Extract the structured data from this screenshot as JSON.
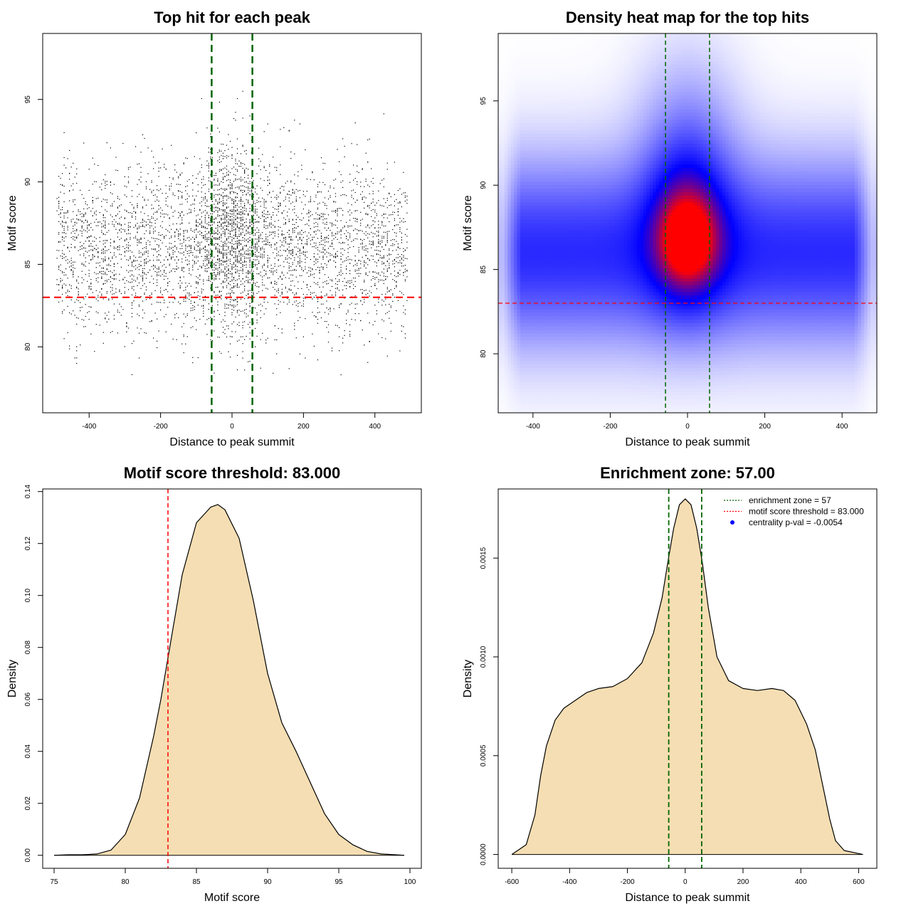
{
  "chart_data": [
    {
      "type": "scatter",
      "title": "Top hit for each peak",
      "xlabel": "Distance to peak summit",
      "ylabel": "Motif score",
      "xlim": [
        -530,
        530
      ],
      "ylim": [
        76,
        99
      ],
      "xticks": [
        -400,
        -200,
        0,
        200,
        400
      ],
      "yticks": [
        80,
        85,
        90,
        95
      ],
      "points_summary": {
        "approx_count": 5000,
        "x_range": [
          -490,
          490
        ],
        "y_range": [
          78.3,
          98.1
        ],
        "central_peak_x": 0,
        "central_peak_y_mean": 87.0,
        "flank_y_mean": 86.0
      },
      "threshold_y": 83.0,
      "enrichment_zone": [
        -57,
        57
      ],
      "threshold_color": "#ff0000",
      "zone_color": "#006400"
    },
    {
      "type": "heatmap",
      "title": "Density heat map for the top hits",
      "xlabel": "Distance to peak summit",
      "ylabel": "Motif score",
      "xlim": [
        -490,
        490
      ],
      "ylim": [
        76.5,
        99
      ],
      "xticks": [
        -400,
        -200,
        0,
        200,
        400
      ],
      "yticks": [
        80,
        85,
        90,
        95
      ],
      "color_scale": [
        "#ffffff",
        "#0000ff",
        "#ff0000"
      ],
      "hotspot": {
        "x": 0,
        "y": 86.7
      },
      "threshold_y": 83.0,
      "enrichment_zone": [
        -57,
        57
      ]
    },
    {
      "type": "area",
      "title": "Motif score threshold: 83.000",
      "xlabel": "Motif score",
      "ylabel": "Density",
      "xlim": [
        74.2,
        100.8
      ],
      "ylim": [
        -0.005,
        0.141
      ],
      "xticks": [
        75,
        80,
        85,
        90,
        95,
        100
      ],
      "yticks": [
        0.0,
        0.02,
        0.04,
        0.06,
        0.08,
        0.1,
        0.12,
        0.14
      ],
      "ytick_labels": [
        "0.00",
        "0.02",
        "0.04",
        "0.06",
        "0.08",
        "0.10",
        "0.12",
        "0.14"
      ],
      "x": [
        75,
        76,
        77,
        78,
        79,
        80,
        81,
        82,
        82.5,
        83,
        84,
        85,
        86,
        86.5,
        87,
        88,
        89,
        90,
        91,
        92,
        93,
        94,
        95,
        96,
        97,
        98,
        99.6
      ],
      "y": [
        0.0,
        0.0002,
        0.0002,
        0.0005,
        0.002,
        0.008,
        0.022,
        0.046,
        0.06,
        0.076,
        0.108,
        0.128,
        0.134,
        0.135,
        0.133,
        0.122,
        0.098,
        0.07,
        0.051,
        0.04,
        0.028,
        0.016,
        0.008,
        0.004,
        0.0015,
        0.0005,
        0.0
      ],
      "fill_color": "#f5deb3",
      "threshold_x": 83.0
    },
    {
      "type": "area",
      "title": "Enrichment zone: 57.00",
      "xlabel": "Distance to peak summit",
      "ylabel": "Density",
      "xlim": [
        -647,
        663
      ],
      "ylim": [
        -7e-05,
        0.00185
      ],
      "xticks": [
        -600,
        -400,
        -200,
        0,
        200,
        400,
        600
      ],
      "yticks": [
        0.0,
        0.0005,
        0.001,
        0.0015
      ],
      "ytick_labels": [
        "0.0000",
        "0.0005",
        "0.0010",
        "0.0015"
      ],
      "x": [
        -600,
        -550,
        -520,
        -500,
        -480,
        -450,
        -420,
        -380,
        -340,
        -300,
        -250,
        -200,
        -150,
        -110,
        -80,
        -60,
        -40,
        -20,
        0,
        20,
        40,
        60,
        80,
        110,
        150,
        200,
        250,
        300,
        340,
        380,
        420,
        450,
        480,
        500,
        520,
        550,
        615
      ],
      "y": [
        0.0,
        5e-05,
        0.0002,
        0.0004,
        0.00055,
        0.00068,
        0.00074,
        0.00078,
        0.00082,
        0.00084,
        0.00085,
        0.00089,
        0.00097,
        0.00112,
        0.0013,
        0.00148,
        0.00165,
        0.00177,
        0.0018,
        0.00177,
        0.00165,
        0.00147,
        0.00125,
        0.001,
        0.00088,
        0.00084,
        0.00083,
        0.00084,
        0.00083,
        0.00078,
        0.00066,
        0.00053,
        0.00032,
        0.00018,
        7e-05,
        2e-05,
        0.0
      ],
      "fill_color": "#f5deb3",
      "enrichment_zone": [
        -57,
        57
      ],
      "legend": {
        "placement": "top-right",
        "items": [
          {
            "label": "enrichment zone = 57",
            "color": "#006400",
            "marker": "dotted-line"
          },
          {
            "label": "motif score threshold = 83.000",
            "color": "#ff0000",
            "marker": "dotted-line"
          },
          {
            "label": "centrality p-val = -0.0054",
            "color": "#0000ff",
            "marker": "dot"
          }
        ]
      }
    }
  ]
}
